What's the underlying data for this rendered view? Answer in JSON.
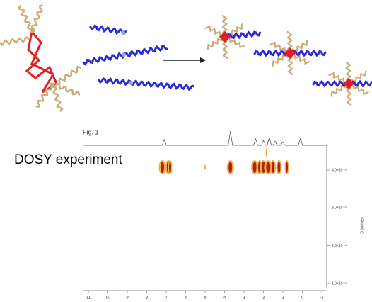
{
  "figure": {
    "label": "Fig. 1",
    "caption": "DOSY experiment"
  },
  "spectrum": {
    "xlim": [
      11.3,
      -1.2
    ],
    "xticks": [
      11,
      10,
      9,
      8,
      7,
      6,
      5,
      4,
      3,
      2,
      1,
      0,
      -1
    ],
    "ylim": [
      4.6e-11,
      9e-12
    ],
    "yticks": [
      {
        "value": 4e-11,
        "label": "4.0×10⁻¹¹"
      },
      {
        "value": 3e-11,
        "label": "3.0×10⁻¹¹"
      },
      {
        "value": 2e-11,
        "label": "2.0×10⁻¹¹"
      },
      {
        "value": 1e-11,
        "label": "1.0×10⁻¹¹"
      }
    ],
    "y_label": "D (m²/sec)"
  }
}
